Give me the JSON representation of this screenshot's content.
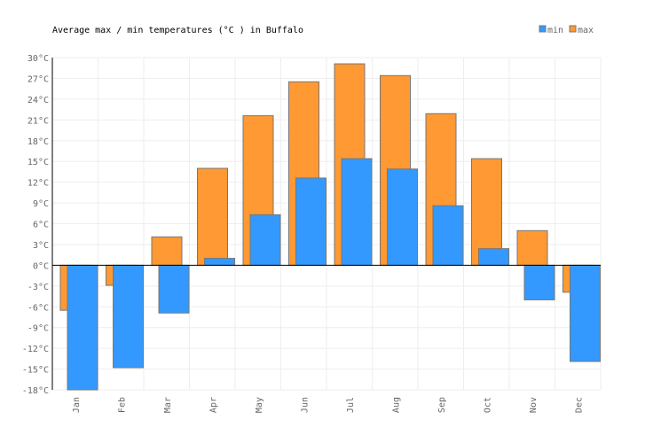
{
  "chart_data": {
    "type": "bar",
    "title": "Average max / min temperatures (°C ) in Buffalo",
    "categories": [
      "Jan",
      "Feb",
      "Mar",
      "Apr",
      "May",
      "Jun",
      "Jul",
      "Aug",
      "Sep",
      "Oct",
      "Nov",
      "Dec"
    ],
    "series": [
      {
        "name": "min",
        "color": "#3399ff",
        "values": [
          -18,
          -14.8,
          -6.9,
          1.0,
          7.3,
          12.6,
          15.4,
          13.9,
          8.6,
          2.4,
          -5.0,
          -13.9
        ]
      },
      {
        "name": "max",
        "color": "#ff9933",
        "values": [
          -6.5,
          -2.9,
          4.1,
          14.0,
          21.6,
          26.5,
          29.1,
          27.4,
          21.9,
          15.4,
          5.0,
          -3.9
        ]
      }
    ],
    "ylim": [
      -18,
      30
    ],
    "yticks": [
      "30°C",
      "27°C",
      "24°C",
      "21°C",
      "18°C",
      "15°C",
      "12°C",
      "9°C",
      "6°C",
      "3°C",
      "0°C",
      "-3°C",
      "-6°C",
      "-9°C",
      "-12°C",
      "-15°C",
      "-18°C"
    ],
    "ytick_values": [
      30,
      27,
      24,
      21,
      18,
      15,
      12,
      9,
      6,
      3,
      0,
      -3,
      -6,
      -9,
      -12,
      -15,
      -18
    ],
    "grid": true,
    "legend": "top-right"
  }
}
